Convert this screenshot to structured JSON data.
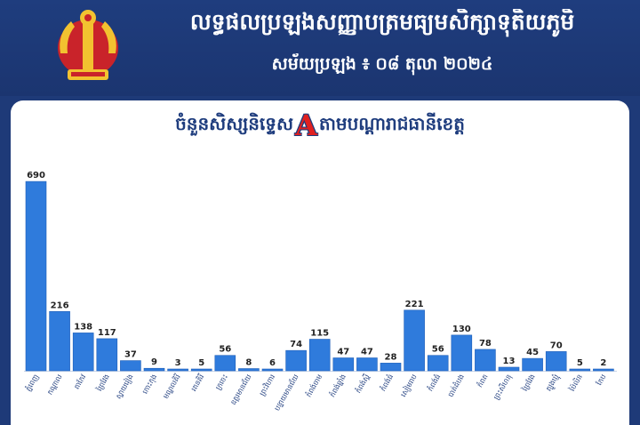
{
  "header": {
    "title": "លទ្ធផលប្រឡងសញ្ញាបត្រមធ្យមសិក្សាទុតិយភូមិ",
    "subtitle": "សម័យប្រឡង ៖ ០៨ តុលា ២០២៤"
  },
  "colors": {
    "bar": "#2f7bdc",
    "header_bg": "#1e3a78",
    "title_accent": "#e02020"
  },
  "chart_data": {
    "type": "bar",
    "title_before": "ចំនួនសិស្សនិទ្ទេស",
    "title_letter": "A",
    "title_after": "តាមបណ្ដារាជធានីខេត្ត",
    "categories": [
      "ភ្នំពេញ",
      "កណ្ដាល",
      "តាកែវ",
      "ព្រៃវែង",
      "ស្វាយរៀង",
      "កោះកុង",
      "មណ្ឌលគិរី",
      "រតនគិរី",
      "ក្រចេះ",
      "ឧត្តរមានជ័យ",
      "ព្រះវិហារ",
      "បន្ទាយមានជ័យ",
      "កំពង់ចាម",
      "កំពង់ឆ្នាំង",
      "កំពង់ស្ពឺ",
      "កំពង់ធំ",
      "សៀមរាប",
      "កំពង់ធំ",
      "បាត់ដំបង",
      "កំពត",
      "ព្រះសីហនុ",
      "ព្រៃវែង",
      "ត្បូងឃ្មុំ",
      "ប៉ៃលិន",
      "កែប"
    ],
    "values": [
      690,
      216,
      138,
      117,
      37,
      9,
      3,
      5,
      56,
      8,
      6,
      74,
      115,
      47,
      47,
      28,
      221,
      56,
      130,
      78,
      13,
      45,
      70,
      5,
      2
    ],
    "ylim": [
      0,
      700
    ],
    "grid": false,
    "legend": "none"
  }
}
